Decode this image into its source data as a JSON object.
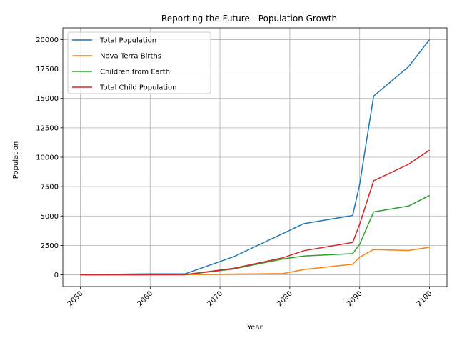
{
  "chart_data": {
    "type": "line",
    "title": "Reporting the Future - Population Growth",
    "xlabel": "Year",
    "ylabel": "Population",
    "xlim": [
      2047.5,
      2102.5
    ],
    "ylim": [
      -1000,
      21000
    ],
    "xticks": [
      2050,
      2060,
      2070,
      2080,
      2090,
      2100
    ],
    "yticks": [
      0,
      2500,
      5000,
      7500,
      10000,
      12500,
      15000,
      17500,
      20000
    ],
    "grid": true,
    "legend_position": "top-left",
    "series": [
      {
        "name": "Total Population",
        "color": "#1f77b4",
        "points": [
          [
            2050,
            20
          ],
          [
            2060,
            80
          ],
          [
            2065,
            80
          ],
          [
            2072,
            1550
          ],
          [
            2082,
            4350
          ],
          [
            2089,
            5050
          ],
          [
            2090,
            7700
          ],
          [
            2092,
            15200
          ],
          [
            2097,
            17700
          ],
          [
            2100,
            20000
          ]
        ]
      },
      {
        "name": "Nova Terra Births",
        "color": "#ff7f0e",
        "points": [
          [
            2050,
            0
          ],
          [
            2060,
            10
          ],
          [
            2065,
            15
          ],
          [
            2072,
            60
          ],
          [
            2079,
            100
          ],
          [
            2082,
            450
          ],
          [
            2089,
            900
          ],
          [
            2090,
            1500
          ],
          [
            2092,
            2150
          ],
          [
            2097,
            2070
          ],
          [
            2100,
            2350
          ]
        ]
      },
      {
        "name": "Children from Earth",
        "color": "#2ca02c",
        "points": [
          [
            2050,
            0
          ],
          [
            2060,
            0
          ],
          [
            2065,
            0
          ],
          [
            2072,
            500
          ],
          [
            2079,
            1350
          ],
          [
            2082,
            1600
          ],
          [
            2089,
            1800
          ],
          [
            2090,
            2600
          ],
          [
            2092,
            5350
          ],
          [
            2097,
            5850
          ],
          [
            2100,
            6750
          ]
        ]
      },
      {
        "name": "Total Child Population",
        "color": "#d62728",
        "points": [
          [
            2050,
            0
          ],
          [
            2060,
            10
          ],
          [
            2065,
            15
          ],
          [
            2072,
            560
          ],
          [
            2079,
            1450
          ],
          [
            2082,
            2050
          ],
          [
            2089,
            2750
          ],
          [
            2090,
            4300
          ],
          [
            2092,
            8000
          ],
          [
            2097,
            9400
          ],
          [
            2100,
            10600
          ]
        ]
      }
    ]
  }
}
